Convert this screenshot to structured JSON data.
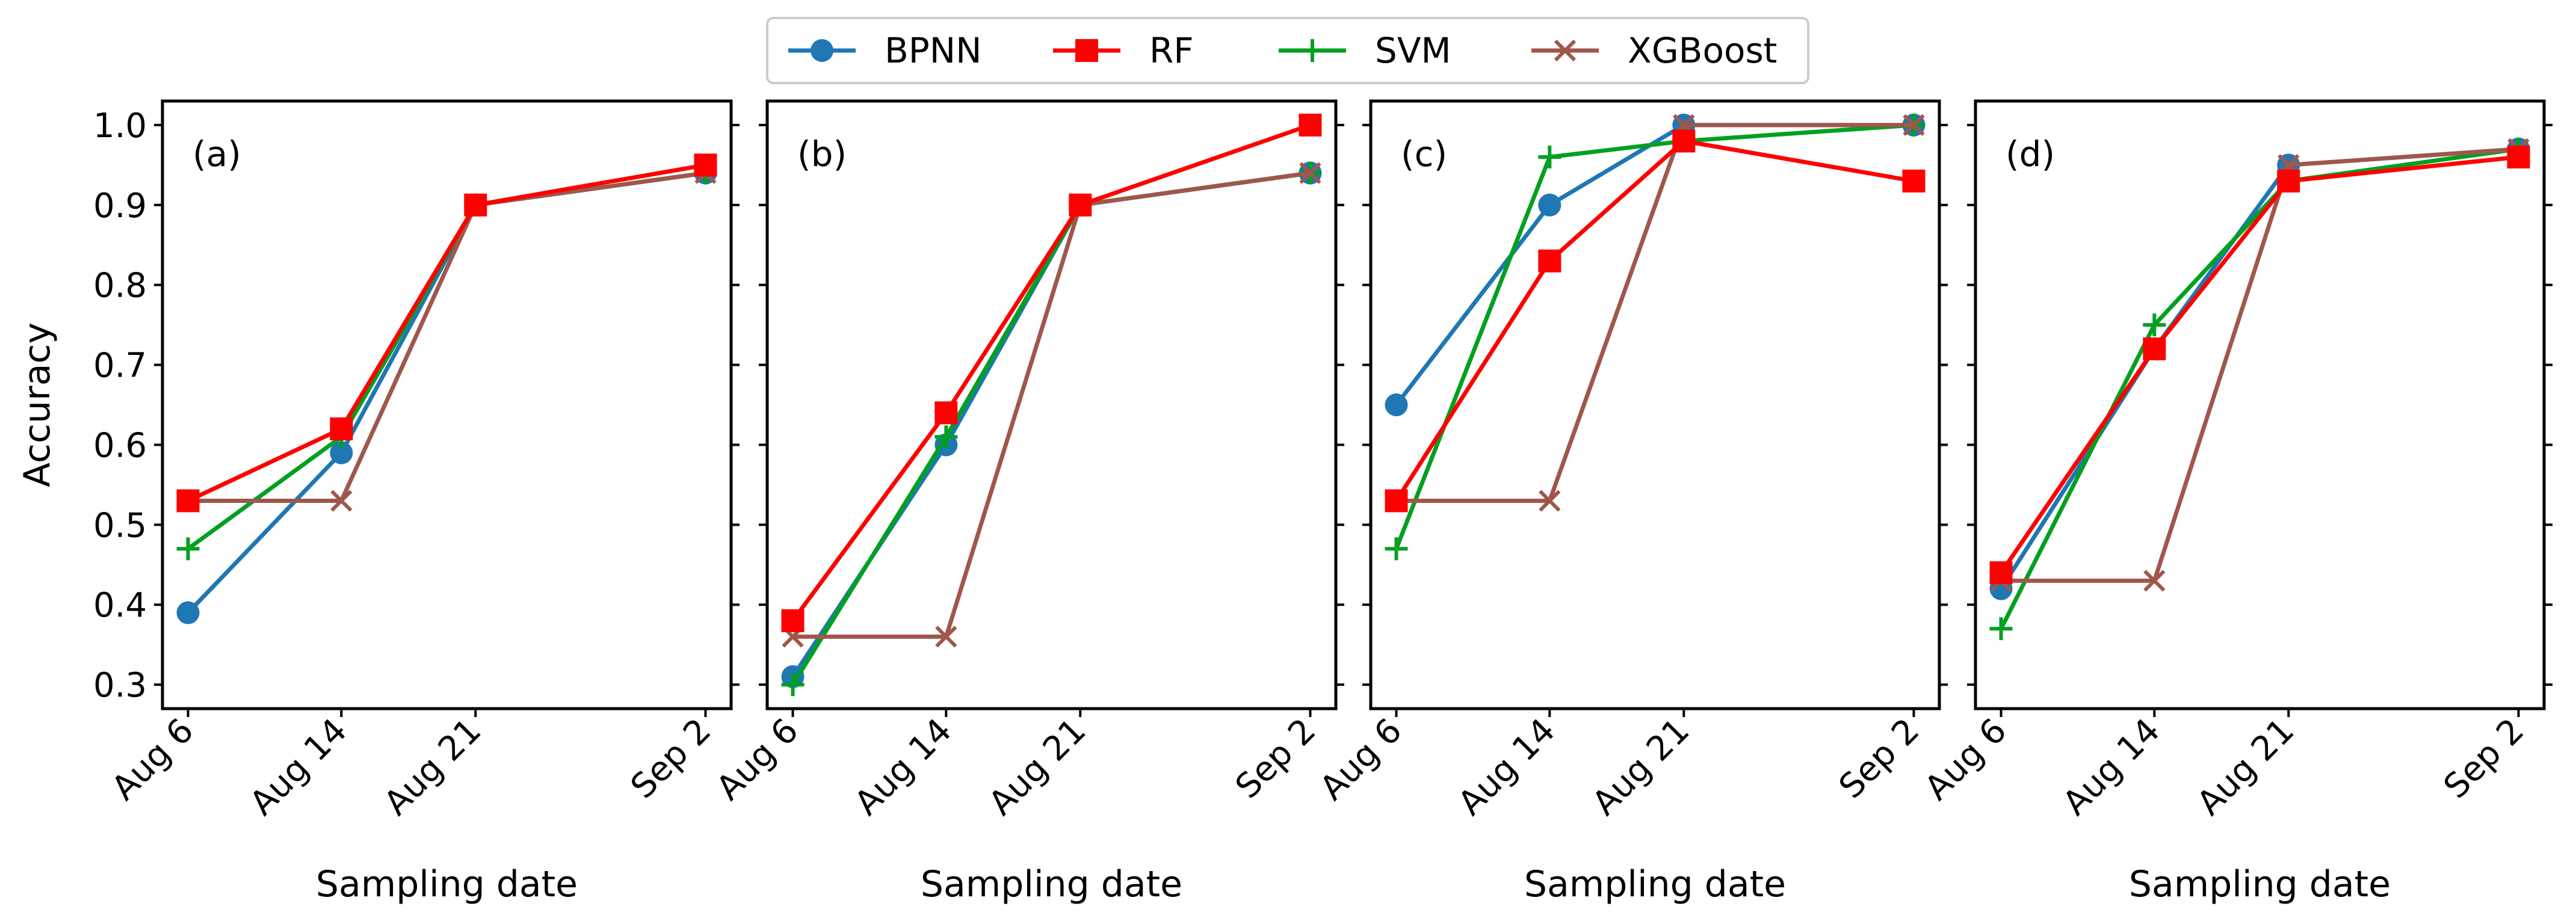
{
  "chart_data": {
    "type": "line",
    "x": [
      "Aug 6",
      "Aug 14",
      "Aug 21",
      "Sep 2"
    ],
    "x_days": [
      6,
      14,
      21,
      33
    ],
    "xlabel": "Sampling date",
    "ylabel": "Accuracy",
    "ylim": [
      0.27,
      1.03
    ],
    "yticks": [
      "0.3",
      "0.4",
      "0.5",
      "0.6",
      "0.7",
      "0.8",
      "0.9",
      "1.0"
    ],
    "legend": {
      "placement": "top-center",
      "entries": [
        {
          "name": "BPNN",
          "color": "#1f77b4",
          "marker": "circle"
        },
        {
          "name": "RF",
          "color": "#ff0000",
          "marker": "square"
        },
        {
          "name": "SVM",
          "color": "#00a020",
          "marker": "plus"
        },
        {
          "name": "XGBoost",
          "color": "#a0574b",
          "marker": "x"
        }
      ]
    },
    "panels": [
      {
        "label": "(a)",
        "series": [
          {
            "name": "BPNN",
            "values": [
              0.39,
              0.59,
              0.9,
              0.94
            ]
          },
          {
            "name": "SVM",
            "values": [
              0.47,
              0.61,
              0.9,
              0.94
            ]
          },
          {
            "name": "XGBoost",
            "values": [
              0.53,
              0.53,
              0.9,
              0.94
            ]
          },
          {
            "name": "RF",
            "values": [
              0.53,
              0.62,
              0.9,
              0.95
            ]
          }
        ]
      },
      {
        "label": "(b)",
        "series": [
          {
            "name": "BPNN",
            "values": [
              0.31,
              0.6,
              0.9,
              0.94
            ]
          },
          {
            "name": "SVM",
            "values": [
              0.3,
              0.61,
              0.9,
              0.94
            ]
          },
          {
            "name": "XGBoost",
            "values": [
              0.36,
              0.36,
              0.9,
              0.94
            ]
          },
          {
            "name": "RF",
            "values": [
              0.38,
              0.64,
              0.9,
              1.0
            ]
          }
        ]
      },
      {
        "label": "(c)",
        "series": [
          {
            "name": "BPNN",
            "values": [
              0.65,
              0.9,
              1.0,
              1.0
            ]
          },
          {
            "name": "SVM",
            "values": [
              0.47,
              0.96,
              0.98,
              1.0
            ]
          },
          {
            "name": "XGBoost",
            "values": [
              0.53,
              0.53,
              1.0,
              1.0
            ]
          },
          {
            "name": "RF",
            "values": [
              0.53,
              0.83,
              0.98,
              0.93
            ]
          }
        ]
      },
      {
        "label": "(d)",
        "series": [
          {
            "name": "BPNN",
            "values": [
              0.42,
              0.72,
              0.95,
              0.97
            ]
          },
          {
            "name": "SVM",
            "values": [
              0.37,
              0.75,
              0.93,
              0.97
            ]
          },
          {
            "name": "XGBoost",
            "values": [
              0.43,
              0.43,
              0.95,
              0.97
            ]
          },
          {
            "name": "RF",
            "values": [
              0.44,
              0.72,
              0.93,
              0.96
            ]
          }
        ]
      }
    ]
  }
}
